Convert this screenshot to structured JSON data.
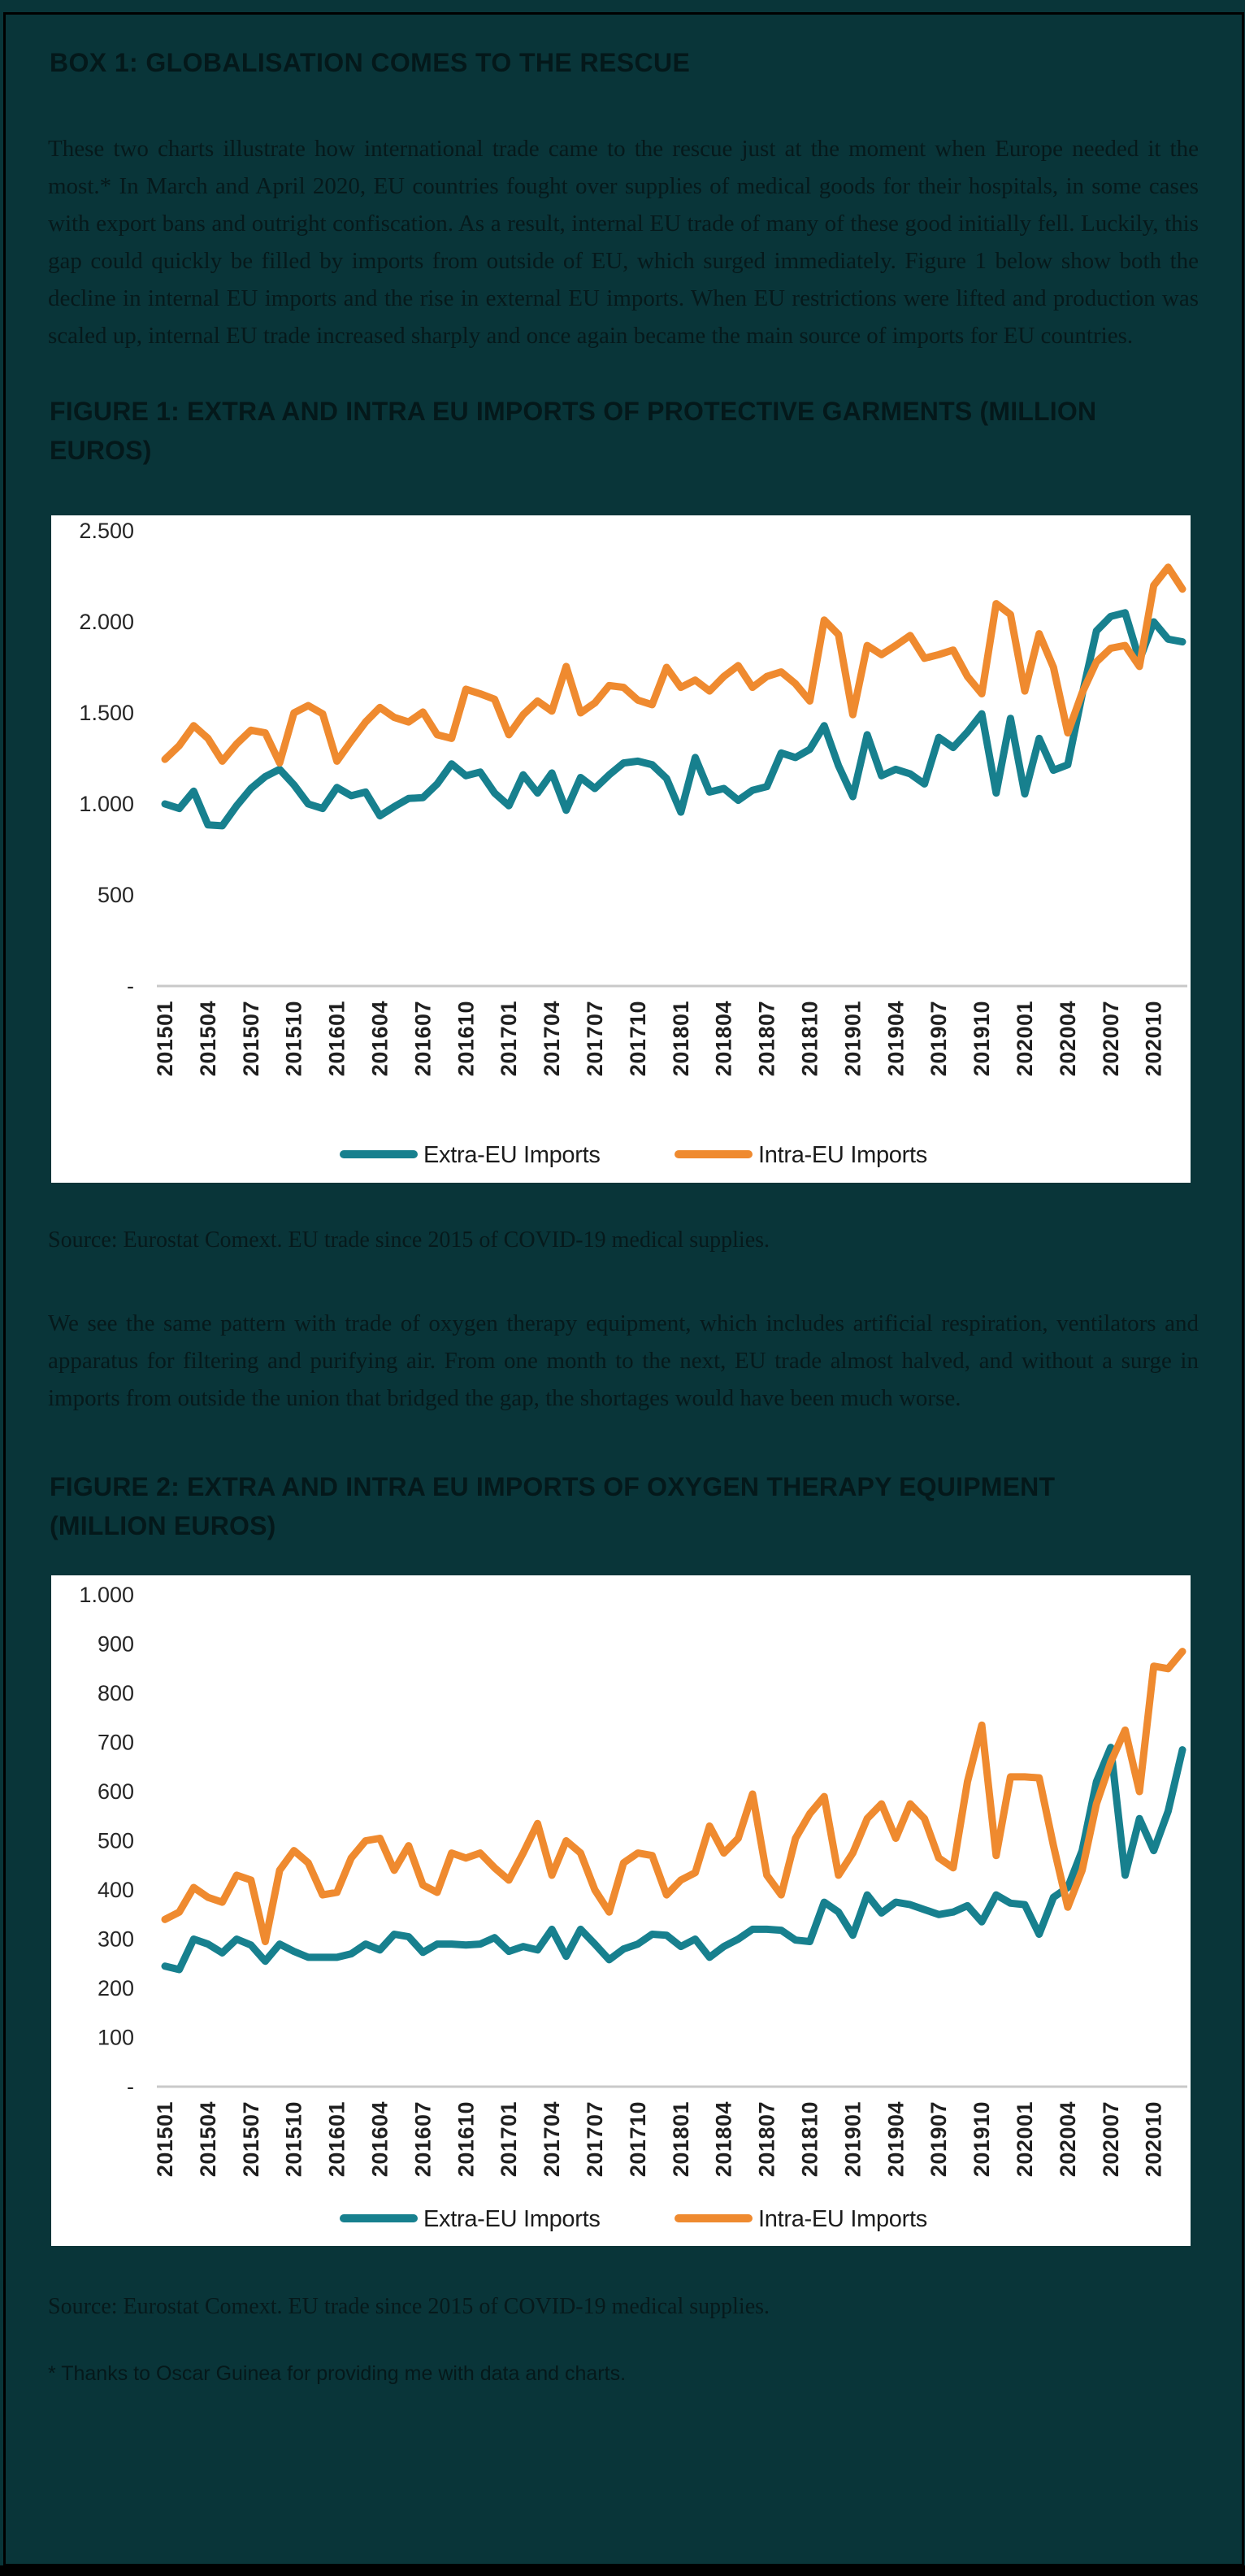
{
  "colors": {
    "background": "#093539",
    "border": "#000000",
    "panel": "#FFFFFF",
    "extra_eu": "#17808E",
    "intra_eu": "#EF8A2F",
    "axis_line": "#C9C9C9",
    "text": "#06191B"
  },
  "box": {
    "title": "BOX 1: GLOBALISATION COMES TO THE RESCUE",
    "paragraph1": "These two charts illustrate how international trade came to the rescue just at the moment when Europe needed it the most.* In March and April 2020, EU countries fought over supplies of medical goods for their hospitals, in some cases with export bans and outright confiscation. As a result, internal EU trade of many of these good initially fell. Luckily, this gap could quickly be filled by imports from outside of EU, which surged immediately. Figure 1 below show both the decline in internal EU imports and the rise in external EU imports. When EU restrictions were lifted and production was scaled up, internal EU trade increased sharply and once again became the main source of imports for EU countries.",
    "paragraph2": "We see the same pattern with trade of oxygen therapy equipment, which includes artificial respiration, ventilators and apparatus for filtering and purifying air. From one month to the next, EU trade almost halved, and without a surge in imports from outside the union that bridged the gap, the shortages would have been much worse.",
    "footnote": "* Thanks to Oscar Guinea for providing me with data and charts."
  },
  "figure1": {
    "title": "FIGURE 1: EXTRA AND INTRA EU IMPORTS OF PROTECTIVE GARMENTS (MILLION EUROS)",
    "source": "Source: Eurostat Comext. EU trade since 2015 of COVID-19 medical supplies."
  },
  "figure2": {
    "title": "FIGURE 2: EXTRA AND INTRA EU IMPORTS OF OXYGEN THERAPY EQUIPMENT (MILLION EUROS)",
    "source": "Source: Eurostat Comext. EU trade since 2015 of COVID-19 medical supplies."
  },
  "chart_data": [
    {
      "type": "line",
      "title": "Extra and intra EU imports of protective garments (million euros)",
      "unit": "million euros",
      "x_start_month": "201501",
      "x_end_month": "202012",
      "x_tick_every": 3,
      "x_tick_labels": [
        "201501",
        "201504",
        "201507",
        "201510",
        "201601",
        "201604",
        "201607",
        "201610",
        "201701",
        "201704",
        "201707",
        "201710",
        "201801",
        "201804",
        "201807",
        "201810",
        "201901",
        "201904",
        "201907",
        "201910",
        "202001",
        "202004",
        "202007",
        "202010"
      ],
      "y_tick_labels": [
        "2.500",
        "2.000",
        "1.500",
        "1.000",
        "500",
        "-"
      ],
      "y_tick_values": [
        2500,
        2000,
        1500,
        1000,
        500,
        0
      ],
      "ylim": [
        0,
        2500
      ],
      "grid": false,
      "legend_position": "bottom",
      "series": [
        {
          "id": "extra-eu",
          "name": "Extra-EU Imports",
          "color": "#17808E",
          "values": [
            1000,
            975,
            1070,
            885,
            880,
            990,
            1085,
            1150,
            1190,
            1105,
            1000,
            975,
            1090,
            1045,
            1065,
            935,
            985,
            1030,
            1035,
            1110,
            1220,
            1155,
            1175,
            1060,
            990,
            1160,
            1060,
            1170,
            965,
            1145,
            1085,
            1160,
            1225,
            1235,
            1215,
            1140,
            955,
            1255,
            1065,
            1085,
            1020,
            1075,
            1095,
            1280,
            1255,
            1300,
            1430,
            1210,
            1040,
            1380,
            1155,
            1190,
            1165,
            1110,
            1365,
            1310,
            1395,
            1495,
            1060,
            1470,
            1055,
            1360,
            1185,
            1215,
            1600,
            1950,
            2030,
            2050,
            1790,
            2000,
            1905,
            1890
          ]
        },
        {
          "id": "intra-eu",
          "name": "Intra-EU Imports",
          "color": "#EF8A2F",
          "values": [
            1245,
            1320,
            1430,
            1360,
            1235,
            1330,
            1405,
            1390,
            1225,
            1500,
            1540,
            1495,
            1235,
            1345,
            1450,
            1530,
            1475,
            1450,
            1505,
            1380,
            1360,
            1630,
            1605,
            1575,
            1380,
            1490,
            1565,
            1510,
            1755,
            1500,
            1555,
            1650,
            1640,
            1570,
            1545,
            1750,
            1640,
            1680,
            1620,
            1700,
            1760,
            1640,
            1700,
            1725,
            1660,
            1565,
            2010,
            1930,
            1490,
            1870,
            1820,
            1870,
            1925,
            1800,
            1820,
            1845,
            1700,
            1605,
            2100,
            2040,
            1620,
            1935,
            1750,
            1390,
            1610,
            1780,
            1855,
            1870,
            1755,
            2200,
            2300,
            2180
          ]
        }
      ]
    },
    {
      "type": "line",
      "title": "Extra and intra EU imports of oxygen therapy equipment (million euros)",
      "unit": "million euros",
      "x_start_month": "201501",
      "x_end_month": "202012",
      "x_tick_every": 3,
      "x_tick_labels": [
        "201501",
        "201504",
        "201507",
        "201510",
        "201601",
        "201604",
        "201607",
        "201610",
        "201701",
        "201704",
        "201707",
        "201710",
        "201801",
        "201804",
        "201807",
        "201810",
        "201901",
        "201904",
        "201907",
        "201910",
        "202001",
        "202004",
        "202007",
        "202010"
      ],
      "y_tick_labels": [
        "1.000",
        "900",
        "800",
        "700",
        "600",
        "500",
        "400",
        "300",
        "200",
        "100",
        "-"
      ],
      "y_tick_values": [
        1000,
        900,
        800,
        700,
        600,
        500,
        400,
        300,
        200,
        100,
        0
      ],
      "ylim": [
        0,
        1000
      ],
      "grid": false,
      "legend_position": "bottom",
      "series": [
        {
          "id": "extra-eu",
          "name": "Extra-EU Imports",
          "color": "#17808E",
          "values": [
            245,
            238,
            300,
            290,
            272,
            300,
            288,
            255,
            290,
            275,
            263,
            263,
            263,
            270,
            290,
            278,
            310,
            305,
            273,
            290,
            290,
            288,
            290,
            303,
            275,
            285,
            278,
            320,
            265,
            320,
            290,
            258,
            280,
            290,
            310,
            308,
            285,
            300,
            263,
            285,
            300,
            320,
            320,
            318,
            298,
            295,
            375,
            355,
            308,
            390,
            353,
            375,
            370,
            360,
            350,
            355,
            368,
            335,
            390,
            373,
            370,
            310,
            385,
            405,
            480,
            620,
            690,
            430,
            545,
            480,
            560,
            685
          ]
        },
        {
          "id": "intra-eu",
          "name": "Intra-EU Imports",
          "color": "#EF8A2F",
          "values": [
            340,
            355,
            405,
            385,
            375,
            430,
            420,
            295,
            440,
            480,
            455,
            390,
            395,
            465,
            500,
            505,
            440,
            490,
            410,
            395,
            475,
            465,
            475,
            445,
            420,
            475,
            535,
            430,
            500,
            475,
            400,
            355,
            455,
            475,
            470,
            390,
            420,
            435,
            530,
            475,
            505,
            595,
            430,
            390,
            505,
            555,
            590,
            430,
            475,
            545,
            575,
            505,
            575,
            545,
            465,
            445,
            620,
            735,
            470,
            630,
            630,
            628,
            490,
            365,
            440,
            575,
            660,
            725,
            600,
            855,
            850,
            885
          ]
        }
      ]
    }
  ]
}
